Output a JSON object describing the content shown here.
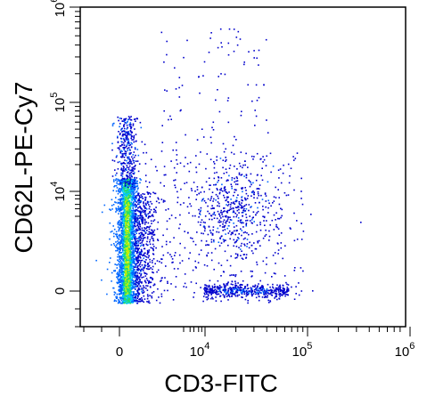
{
  "chart_data": {
    "type": "scatter",
    "style": "flow cytometry density dot plot (biexponential axes)",
    "xlabel": "CD3-FITC",
    "ylabel": "CD62L-PE-Cy7",
    "xscale": "biexponential",
    "yscale": "biexponential",
    "xlim": [
      -1000,
      1000000
    ],
    "ylim": [
      -1000,
      1000000
    ],
    "x_ticks": [
      {
        "value": 0,
        "label": "0"
      },
      {
        "value": 10000,
        "label": "10",
        "exp": "4"
      },
      {
        "value": 100000,
        "label": "10",
        "exp": "5"
      },
      {
        "value": 1000000,
        "label": "10",
        "exp": "6"
      }
    ],
    "y_ticks": [
      {
        "value": 0,
        "label": "0"
      },
      {
        "value": 10000,
        "label": "10",
        "exp": "4"
      },
      {
        "value": 100000,
        "label": "10",
        "exp": "5"
      },
      {
        "value": 1000000,
        "label": "10",
        "exp": "6"
      }
    ],
    "density_colors": [
      "#0000cc",
      "#0066ff",
      "#00c8ff",
      "#22dd66",
      "#c8f000"
    ],
    "populations": [
      {
        "name_hint": "CD3- (dense vertical column)",
        "x_center": 500,
        "y_range": [
          -300,
          25000
        ],
        "density": "very high"
      },
      {
        "name_hint": "CD3+ CD62L- cluster",
        "x_center": 30000,
        "y_center": 0,
        "density": "medium"
      },
      {
        "name_hint": "CD3+ CD62L+ cluster",
        "x_center": 35000,
        "y_center": 12000,
        "density": "low"
      },
      {
        "name_hint": "scattered high CD62L events",
        "y_range": [
          100000,
          800000
        ],
        "density": "very low"
      }
    ],
    "grid": false,
    "legend": "none"
  }
}
